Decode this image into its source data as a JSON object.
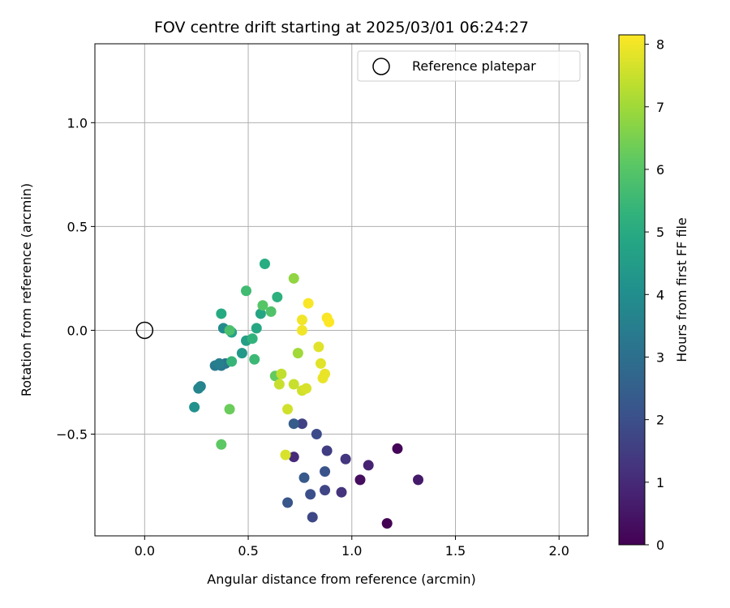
{
  "chart_data": {
    "type": "scatter",
    "title": "FOV centre drift starting at 2025/03/01 06:24:27",
    "xlabel": "Angular distance from reference (arcmin)",
    "ylabel": "Rotation from reference (arcmin)",
    "xlim": [
      -0.24,
      2.14
    ],
    "ylim": [
      -0.99,
      1.38
    ],
    "xticks": [
      0.0,
      0.5,
      1.0,
      1.5,
      2.0
    ],
    "xtick_labels": [
      "0.0",
      "0.5",
      "1.0",
      "1.5",
      "2.0"
    ],
    "yticks": [
      -0.5,
      0.0,
      0.5,
      1.0
    ],
    "ytick_labels": [
      "−0.5",
      "0.0",
      "0.5",
      "1.0"
    ],
    "grid": true,
    "legend": {
      "placement": "top-right",
      "entries": [
        "Reference platepar"
      ]
    },
    "reference_point": {
      "x": 0.0,
      "y": 0.0,
      "label": "Reference platepar"
    },
    "colorbar": {
      "label": "Hours from first FF file",
      "colormap": "viridis",
      "range": [
        0,
        8.15
      ],
      "ticks": [
        0,
        1,
        2,
        3,
        4,
        5,
        6,
        7,
        8
      ],
      "tick_labels": [
        "0",
        "1",
        "2",
        "3",
        "4",
        "5",
        "6",
        "7",
        "8"
      ]
    },
    "points": [
      {
        "x": 1.17,
        "y": -0.93,
        "c": 0.0
      },
      {
        "x": 1.22,
        "y": -0.57,
        "c": 0.1
      },
      {
        "x": 1.04,
        "y": -0.72,
        "c": 0.3
      },
      {
        "x": 1.32,
        "y": -0.72,
        "c": 0.6
      },
      {
        "x": 1.08,
        "y": -0.65,
        "c": 0.8
      },
      {
        "x": 0.72,
        "y": -0.61,
        "c": 1.0
      },
      {
        "x": 0.95,
        "y": -0.78,
        "c": 1.2
      },
      {
        "x": 0.97,
        "y": -0.62,
        "c": 1.3
      },
      {
        "x": 0.88,
        "y": -0.58,
        "c": 1.5
      },
      {
        "x": 0.76,
        "y": -0.45,
        "c": 1.6
      },
      {
        "x": 0.87,
        "y": -0.77,
        "c": 1.7
      },
      {
        "x": 0.81,
        "y": -0.9,
        "c": 1.8
      },
      {
        "x": 0.83,
        "y": -0.5,
        "c": 1.9
      },
      {
        "x": 0.8,
        "y": -0.79,
        "c": 2.0
      },
      {
        "x": 0.87,
        "y": -0.68,
        "c": 2.1
      },
      {
        "x": 0.69,
        "y": -0.83,
        "c": 2.2
      },
      {
        "x": 0.77,
        "y": -0.71,
        "c": 2.3
      },
      {
        "x": 0.72,
        "y": -0.45,
        "c": 2.4
      },
      {
        "x": 0.39,
        "y": -0.16,
        "c": 3.2
      },
      {
        "x": 0.37,
        "y": -0.17,
        "c": 3.3
      },
      {
        "x": 0.34,
        "y": -0.17,
        "c": 3.4
      },
      {
        "x": 0.36,
        "y": -0.16,
        "c": 3.5
      },
      {
        "x": 0.27,
        "y": -0.27,
        "c": 3.6
      },
      {
        "x": 0.26,
        "y": -0.28,
        "c": 3.7
      },
      {
        "x": 0.38,
        "y": 0.01,
        "c": 3.9
      },
      {
        "x": 0.24,
        "y": -0.37,
        "c": 4.1
      },
      {
        "x": 0.47,
        "y": -0.11,
        "c": 4.4
      },
      {
        "x": 0.49,
        "y": -0.05,
        "c": 4.6
      },
      {
        "x": 0.42,
        "y": -0.01,
        "c": 4.7
      },
      {
        "x": 0.56,
        "y": 0.08,
        "c": 4.8
      },
      {
        "x": 0.54,
        "y": 0.01,
        "c": 4.9
      },
      {
        "x": 0.37,
        "y": 0.08,
        "c": 5.0
      },
      {
        "x": 0.58,
        "y": 0.32,
        "c": 5.1
      },
      {
        "x": 0.64,
        "y": 0.16,
        "c": 5.2
      },
      {
        "x": 0.52,
        "y": -0.04,
        "c": 5.3
      },
      {
        "x": 0.42,
        "y": -0.15,
        "c": 5.4
      },
      {
        "x": 0.53,
        "y": -0.14,
        "c": 5.5
      },
      {
        "x": 0.49,
        "y": 0.19,
        "c": 5.6
      },
      {
        "x": 0.41,
        "y": 0.0,
        "c": 5.8
      },
      {
        "x": 0.61,
        "y": 0.09,
        "c": 5.9
      },
      {
        "x": 0.57,
        "y": 0.12,
        "c": 6.0
      },
      {
        "x": 0.37,
        "y": -0.55,
        "c": 6.1
      },
      {
        "x": 0.63,
        "y": -0.22,
        "c": 6.2
      },
      {
        "x": 0.41,
        "y": -0.38,
        "c": 6.3
      },
      {
        "x": 0.72,
        "y": 0.25,
        "c": 6.8
      },
      {
        "x": 0.74,
        "y": -0.11,
        "c": 7.0
      },
      {
        "x": 0.66,
        "y": -0.21,
        "c": 7.4
      },
      {
        "x": 0.65,
        "y": -0.26,
        "c": 7.5
      },
      {
        "x": 0.72,
        "y": -0.26,
        "c": 7.5
      },
      {
        "x": 0.76,
        "y": -0.29,
        "c": 7.6
      },
      {
        "x": 0.78,
        "y": -0.28,
        "c": 7.7
      },
      {
        "x": 0.69,
        "y": -0.38,
        "c": 7.6
      },
      {
        "x": 0.68,
        "y": -0.6,
        "c": 7.7
      },
      {
        "x": 0.84,
        "y": -0.08,
        "c": 7.8
      },
      {
        "x": 0.85,
        "y": -0.16,
        "c": 7.8
      },
      {
        "x": 0.87,
        "y": -0.21,
        "c": 7.9
      },
      {
        "x": 0.86,
        "y": -0.23,
        "c": 7.9
      },
      {
        "x": 0.76,
        "y": 0.05,
        "c": 8.0
      },
      {
        "x": 0.76,
        "y": 0.0,
        "c": 8.0
      },
      {
        "x": 0.79,
        "y": 0.13,
        "c": 8.1
      },
      {
        "x": 0.88,
        "y": 0.06,
        "c": 8.1
      },
      {
        "x": 0.89,
        "y": 0.04,
        "c": 8.15
      }
    ]
  }
}
